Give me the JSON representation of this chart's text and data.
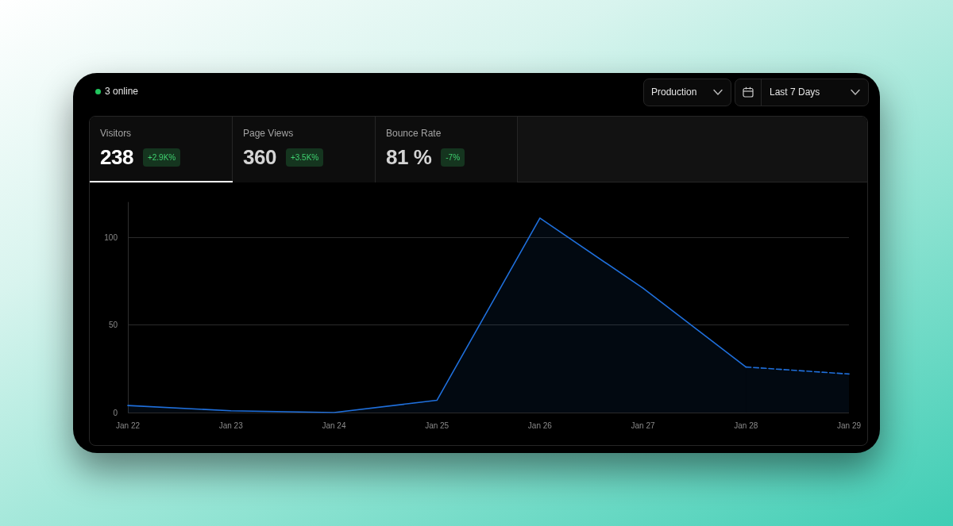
{
  "chart_data": {
    "type": "area",
    "annotations": [
      "3 online",
      "Production",
      "Last 7 Days",
      "Visitors",
      "238",
      "+2.9K%",
      "Page Views",
      "360",
      "+3.5K%",
      "Bounce Rate",
      "81 %",
      "-7%"
    ],
    "categories": [
      "Jan 22",
      "Jan 23",
      "Jan 24",
      "Jan 25",
      "Jan 26",
      "Jan 27",
      "Jan 28",
      "Jan 29"
    ],
    "series": [
      {
        "color": "#1f6fdb",
        "line_style": "solid",
        "values": [
          4,
          1,
          0,
          7,
          111,
          71,
          26,
          null
        ]
      },
      {
        "color": "#1f6fdb",
        "line_style": "dashed",
        "values": [
          null,
          null,
          null,
          null,
          null,
          null,
          26,
          22
        ]
      }
    ],
    "ylim": [
      0,
      120
    ],
    "yticks": [
      0,
      50,
      100
    ],
    "grid": "y",
    "marker": "none"
  }
}
